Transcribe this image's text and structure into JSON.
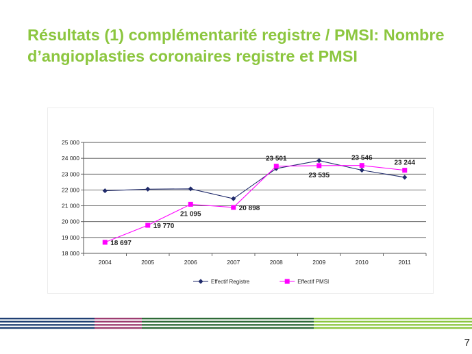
{
  "slide": {
    "title": "Résultats (1) complémentarité registre / PMSI: Nombre d’angioplasties coronaires registre et PMSI",
    "page_number": "7",
    "title_color": "#8cc63f"
  },
  "chart_data": {
    "type": "line",
    "title": "",
    "xlabel": "",
    "ylabel": "",
    "categories": [
      "2004",
      "2005",
      "2006",
      "2007",
      "2008",
      "2009",
      "2010",
      "2011"
    ],
    "ylim": [
      18000,
      25000
    ],
    "y_ticks": [
      18000,
      19000,
      20000,
      21000,
      22000,
      23000,
      24000,
      25000
    ],
    "y_tick_labels": [
      "18 000",
      "19 000",
      "20 000",
      "21 000",
      "22 000",
      "23 000",
      "24 000",
      "25 000"
    ],
    "grid": true,
    "legend_position": "bottom",
    "series": [
      {
        "name": "Effectif Registre",
        "color": "#1f2a6b",
        "marker": "diamond",
        "values": [
          21950,
          22050,
          22070,
          21450,
          23350,
          23850,
          23250,
          22800
        ]
      },
      {
        "name": "Effectif PMSI",
        "color": "#ff00ff",
        "marker": "square",
        "values": [
          18697,
          19770,
          21095,
          20898,
          23501,
          23535,
          23546,
          23244
        ]
      }
    ],
    "data_labels": [
      {
        "category": "2004",
        "value": 18697,
        "text": "18 697",
        "placement": "right"
      },
      {
        "category": "2005",
        "value": 19770,
        "text": "19 770",
        "placement": "right"
      },
      {
        "category": "2006",
        "value": 21095,
        "text": "21 095",
        "placement": "below"
      },
      {
        "category": "2007",
        "value": 20898,
        "text": "20 898",
        "placement": "right"
      },
      {
        "category": "2008",
        "value": 23501,
        "text": "23 501",
        "placement": "above"
      },
      {
        "category": "2009",
        "value": 23535,
        "text": "23 535",
        "placement": "below"
      },
      {
        "category": "2010",
        "value": 23546,
        "text": "23 546",
        "placement": "above"
      },
      {
        "category": "2011",
        "value": 23244,
        "text": "23 244",
        "placement": "above"
      }
    ]
  },
  "footer_stripes": {
    "colors": [
      "#1f3f73",
      "#9c3c70",
      "#2d6a37",
      "#8cc63f"
    ]
  }
}
